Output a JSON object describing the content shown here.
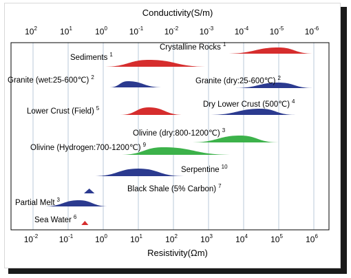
{
  "chart_data": {
    "type": "range",
    "title": "",
    "top_axis": {
      "label": "Conductivity(S/m)",
      "ticks": [
        "10^2",
        "10^1",
        "10^0",
        "10^-1",
        "10^-2",
        "10^-3",
        "10^-4",
        "10^-5",
        "10^-6"
      ]
    },
    "bottom_axis": {
      "label": "Resistivity(Ωm)",
      "scale": "log",
      "range": [
        0.01,
        1000000
      ],
      "ticks": [
        "10^-2",
        "10^-1",
        "10^0",
        "10^1",
        "10^2",
        "10^3",
        "10^4",
        "10^5",
        "10^6"
      ]
    },
    "grid": true,
    "materials": [
      {
        "name": "Crystalline Rocks",
        "ref": "1",
        "color": "#d62d2d",
        "rho_min": 3000,
        "rho_max": 1000000,
        "peak": 100000,
        "sym": "none"
      },
      {
        "name": "Sediments",
        "ref": "1",
        "color": "#d62d2d",
        "rho_min": 1,
        "rho_max": 1000,
        "peak": 20,
        "sym": "none"
      },
      {
        "name": "Granite (wet:25-600℃)",
        "ref": "2",
        "color": "#2b3a8f",
        "rho_min": 1.5,
        "rho_max": 50,
        "peak": 5,
        "sym": "none"
      },
      {
        "name": "Granite (dry:25-600℃)",
        "ref": "2",
        "color": "#2b3a8f",
        "rho_min": 5000,
        "rho_max": 1000000,
        "peak": 100000,
        "sym": "left"
      },
      {
        "name": "Lower Crust (Field)",
        "ref": "5",
        "color": "#d62d2d",
        "rho_min": 3,
        "rho_max": 200,
        "peak": 20,
        "sym": "none"
      },
      {
        "name": "Dry Lower Crust (500℃)",
        "ref": "4",
        "color": "#2b3a8f",
        "rho_min": 1000,
        "rho_max": 300000,
        "peak": 30000,
        "sym": "none"
      },
      {
        "name": "Olivine (dry:800-1200℃)",
        "ref": "3",
        "color": "#3cb24a",
        "rho_min": 300,
        "rho_max": 100000,
        "peak": 8000,
        "sym": "none"
      },
      {
        "name": "Olivine (Hydrogen:700-1200℃)",
        "ref": "9",
        "color": "#3cb24a",
        "rho_min": 3,
        "rho_max": 5000,
        "peak": 50,
        "sym": "none"
      },
      {
        "name": "Serpentine",
        "ref": "10",
        "color": "#2b3a8f",
        "rho_min": 0.5,
        "rho_max": 200,
        "peak": 10,
        "sym": "none"
      },
      {
        "name": "Black Shale (5% Carbon)",
        "ref": "7",
        "color": "#2b3a8f",
        "rho_min": 0.3,
        "rho_max": 0.5,
        "peak": 0.4,
        "sym": "none"
      },
      {
        "name": "Partial Melt",
        "ref": "3",
        "color": "#2b3a8f",
        "rho_min": 0.02,
        "rho_max": 1.5,
        "peak": 0.2,
        "sym": "none"
      },
      {
        "name": "Sea Water",
        "ref": "6",
        "color": "#d62d2d",
        "rho_min": 0.25,
        "rho_max": 0.33,
        "peak": 0.3,
        "sym": "none"
      }
    ]
  }
}
